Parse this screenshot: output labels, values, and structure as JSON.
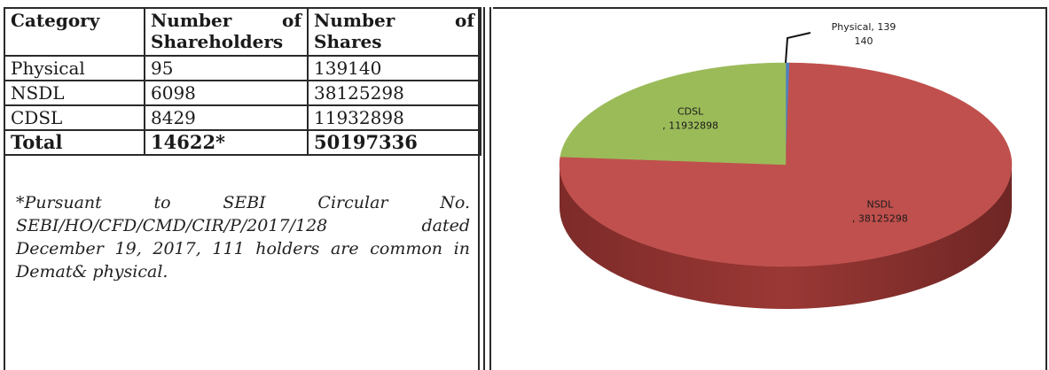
{
  "table": {
    "headers": {
      "category": "Category",
      "shareholders_line1_a": "Number",
      "shareholders_line1_b": "of",
      "shareholders_line2": "Shareholders",
      "shares_line1_a": "Number",
      "shares_line1_b": "of",
      "shares_line2": "Shares"
    },
    "rows": [
      {
        "category": "Physical",
        "shareholders": "95",
        "shares": "139140"
      },
      {
        "category": "NSDL",
        "shareholders": "6098",
        "shares": "38125298"
      },
      {
        "category": "CDSL",
        "shareholders": "8429",
        "shares": "11932898"
      }
    ],
    "total": {
      "category": "Total",
      "shareholders": "14622*",
      "shares": "50197336"
    }
  },
  "footnote": "*Pursuant to SEBI Circular No. SEBI/HO/CFD/CMD/CIR/P/2017/128 dated December 19, 2017, 111 holders are common in Demat& physical.",
  "chart_data": {
    "type": "pie",
    "title": "",
    "slices": [
      {
        "label": "Physical",
        "value": 139140,
        "color": "#4f81bd",
        "label_line1": "Physical, 139",
        "label_line2": "140"
      },
      {
        "label": "NSDL",
        "value": 38125298,
        "color": "#c0504d",
        "label_line1": "NSDL",
        "label_line2": ", 38125298"
      },
      {
        "label": "CDSL",
        "value": 11932898,
        "color": "#9bbb59",
        "label_line1": "CDSL",
        "label_line2": ", 11932898"
      }
    ]
  }
}
